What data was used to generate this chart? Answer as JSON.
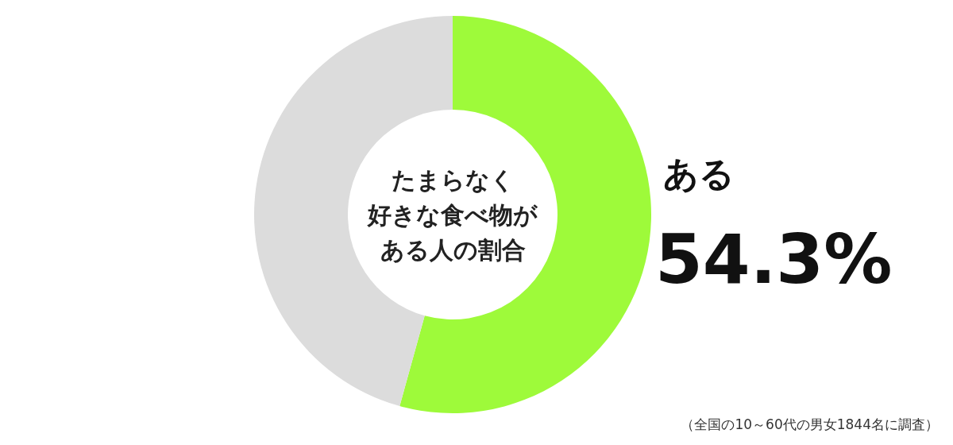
{
  "chart_data": {
    "type": "donut",
    "title": "たまらなく好きな食べ物がある人の割合",
    "categories": [
      "ある",
      null
    ],
    "values": [
      54.3,
      45.7
    ],
    "colors": [
      "#9efa3a",
      "#dcdcdc"
    ],
    "value_labels": [
      "54.3%",
      null
    ],
    "annotations": [
      "（全国の10～60代の男女1844名に調査）"
    ]
  }
}
